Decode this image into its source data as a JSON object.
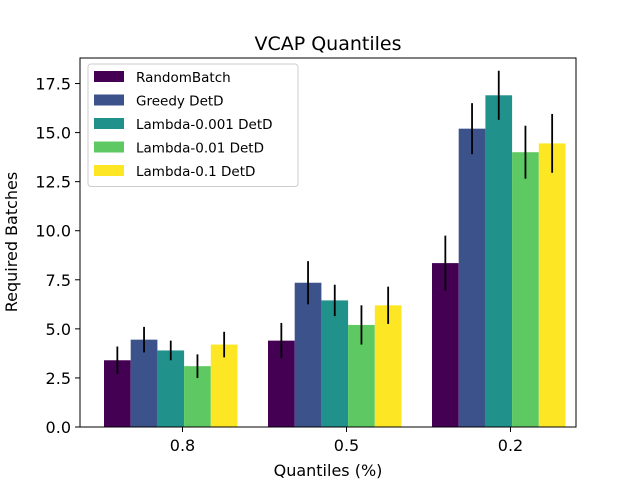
{
  "chart_data": {
    "type": "bar",
    "title": "VCAP Quantiles",
    "xlabel": "Quantiles (%)",
    "ylabel": "Required Batches",
    "categories": [
      "0.8",
      "0.5",
      "0.2"
    ],
    "ylim": [
      0,
      18.8
    ],
    "yticks": [
      "0.0",
      "2.5",
      "5.0",
      "7.5",
      "10.0",
      "12.5",
      "15.0",
      "17.5"
    ],
    "ytick_values": [
      0,
      2.5,
      5,
      7.5,
      10,
      12.5,
      15,
      17.5
    ],
    "legend_position": "upper-left",
    "series": [
      {
        "name": "RandomBatch",
        "color": "#440154",
        "values": [
          3.4,
          4.4,
          8.35
        ],
        "errors": [
          0.7,
          0.9,
          1.4
        ]
      },
      {
        "name": "Greedy DetD",
        "color": "#3b528b",
        "values": [
          4.45,
          7.35,
          15.2
        ],
        "errors": [
          0.65,
          1.1,
          1.3
        ]
      },
      {
        "name": "Lambda-0.001 DetD",
        "color": "#21918c",
        "values": [
          3.9,
          6.45,
          16.9
        ],
        "errors": [
          0.5,
          0.8,
          1.25
        ]
      },
      {
        "name": "Lambda-0.01 DetD",
        "color": "#5ec962",
        "values": [
          3.1,
          5.2,
          14.0
        ],
        "errors": [
          0.6,
          1.0,
          1.35
        ]
      },
      {
        "name": "Lambda-0.1 DetD",
        "color": "#fde725",
        "values": [
          4.2,
          6.2,
          14.45
        ],
        "errors": [
          0.65,
          0.95,
          1.5
        ]
      }
    ]
  }
}
